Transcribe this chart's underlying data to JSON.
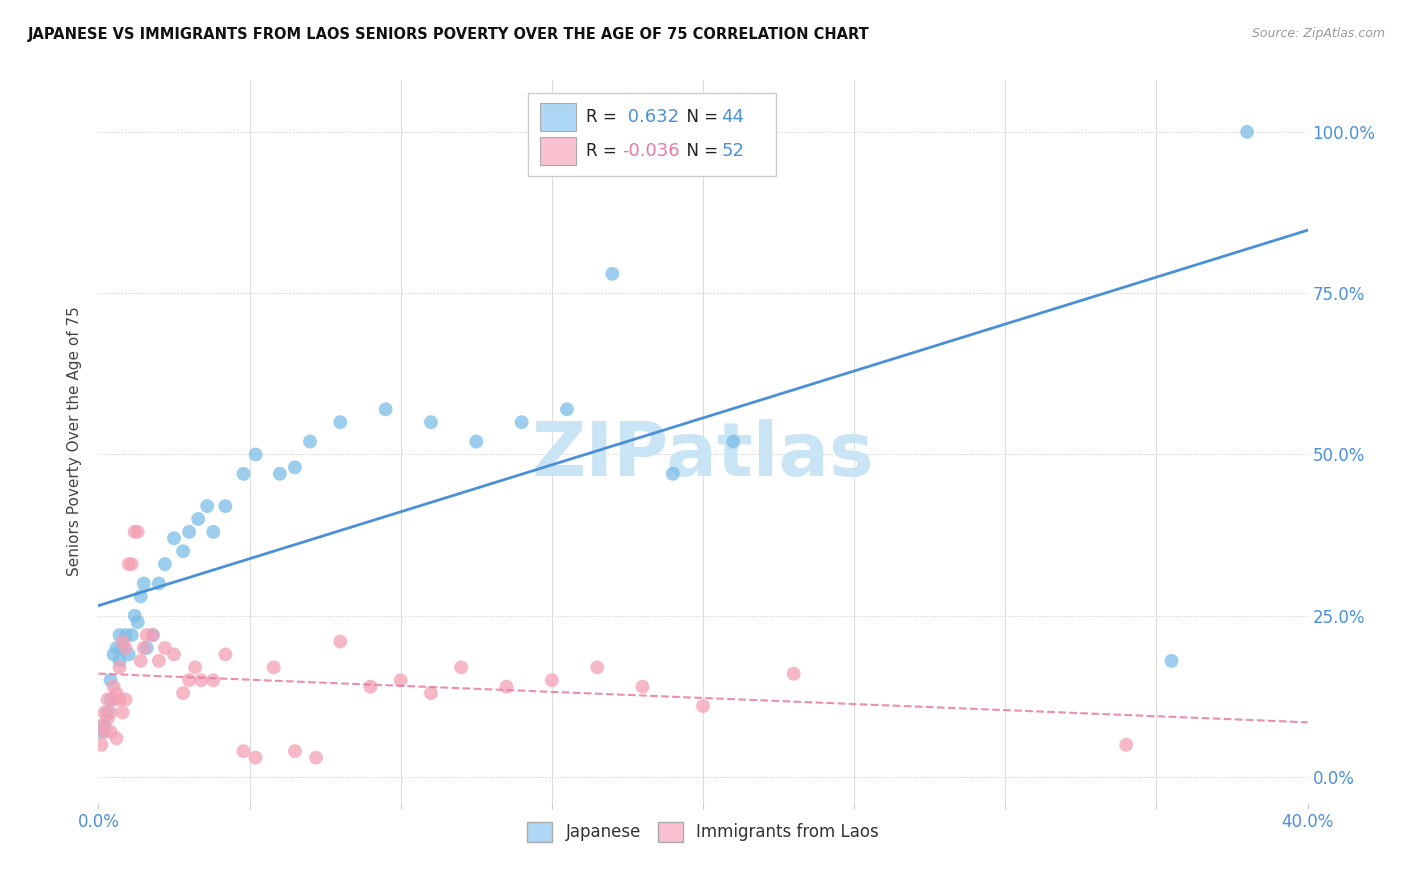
{
  "title": "JAPANESE VS IMMIGRANTS FROM LAOS SENIORS POVERTY OVER THE AGE OF 75 CORRELATION CHART",
  "source": "Source: ZipAtlas.com",
  "ylabel": "Seniors Poverty Over the Age of 75",
  "xlim": [
    0.0,
    0.4
  ],
  "ylim": [
    -0.04,
    1.08
  ],
  "xticks": [
    0.0,
    0.05,
    0.1,
    0.15,
    0.2,
    0.25,
    0.3,
    0.35,
    0.4
  ],
  "yticks": [
    0.0,
    0.25,
    0.5,
    0.75,
    1.0
  ],
  "R_japanese": 0.632,
  "N_japanese": 44,
  "R_laos": -0.036,
  "N_laos": 52,
  "japanese_color": "#7bbde8",
  "laos_color": "#f4a0b5",
  "japanese_line_color": "#4a90d9",
  "laos_line_color": "#e87a9f",
  "axis_color": "#4a90d9",
  "watermark_text": "ZIPatlas",
  "watermark_color": "#c8e4f5",
  "background_color": "#ffffff",
  "japanese_x": [
    0.001,
    0.002,
    0.003,
    0.004,
    0.004,
    0.005,
    0.006,
    0.007,
    0.007,
    0.008,
    0.009,
    0.01,
    0.011,
    0.012,
    0.013,
    0.014,
    0.015,
    0.016,
    0.018,
    0.02,
    0.022,
    0.025,
    0.028,
    0.03,
    0.033,
    0.036,
    0.038,
    0.042,
    0.048,
    0.052,
    0.06,
    0.065,
    0.07,
    0.08,
    0.095,
    0.11,
    0.125,
    0.14,
    0.155,
    0.17,
    0.19,
    0.21,
    0.355,
    0.38
  ],
  "japanese_y": [
    0.07,
    0.08,
    0.1,
    0.15,
    0.12,
    0.19,
    0.2,
    0.22,
    0.18,
    0.2,
    0.22,
    0.19,
    0.22,
    0.25,
    0.24,
    0.28,
    0.3,
    0.2,
    0.22,
    0.3,
    0.33,
    0.37,
    0.35,
    0.38,
    0.4,
    0.42,
    0.38,
    0.42,
    0.47,
    0.5,
    0.47,
    0.48,
    0.52,
    0.55,
    0.57,
    0.55,
    0.52,
    0.55,
    0.57,
    0.78,
    0.47,
    0.52,
    0.18,
    1.0
  ],
  "laos_x": [
    0.001,
    0.001,
    0.002,
    0.002,
    0.003,
    0.003,
    0.004,
    0.004,
    0.005,
    0.005,
    0.006,
    0.006,
    0.007,
    0.007,
    0.008,
    0.008,
    0.009,
    0.009,
    0.01,
    0.011,
    0.012,
    0.013,
    0.014,
    0.015,
    0.016,
    0.018,
    0.02,
    0.022,
    0.025,
    0.028,
    0.03,
    0.032,
    0.034,
    0.038,
    0.042,
    0.048,
    0.052,
    0.058,
    0.065,
    0.072,
    0.08,
    0.09,
    0.1,
    0.11,
    0.12,
    0.135,
    0.15,
    0.165,
    0.18,
    0.2,
    0.23,
    0.34
  ],
  "laos_y": [
    0.05,
    0.08,
    0.07,
    0.1,
    0.09,
    0.12,
    0.1,
    0.07,
    0.12,
    0.14,
    0.06,
    0.13,
    0.12,
    0.17,
    0.1,
    0.21,
    0.12,
    0.2,
    0.33,
    0.33,
    0.38,
    0.38,
    0.18,
    0.2,
    0.22,
    0.22,
    0.18,
    0.2,
    0.19,
    0.13,
    0.15,
    0.17,
    0.15,
    0.15,
    0.19,
    0.04,
    0.03,
    0.17,
    0.04,
    0.03,
    0.21,
    0.14,
    0.15,
    0.13,
    0.17,
    0.14,
    0.15,
    0.17,
    0.14,
    0.11,
    0.16,
    0.05
  ],
  "legend_blue_fill": "#aed6f5",
  "legend_pink_fill": "#f9c0cf"
}
